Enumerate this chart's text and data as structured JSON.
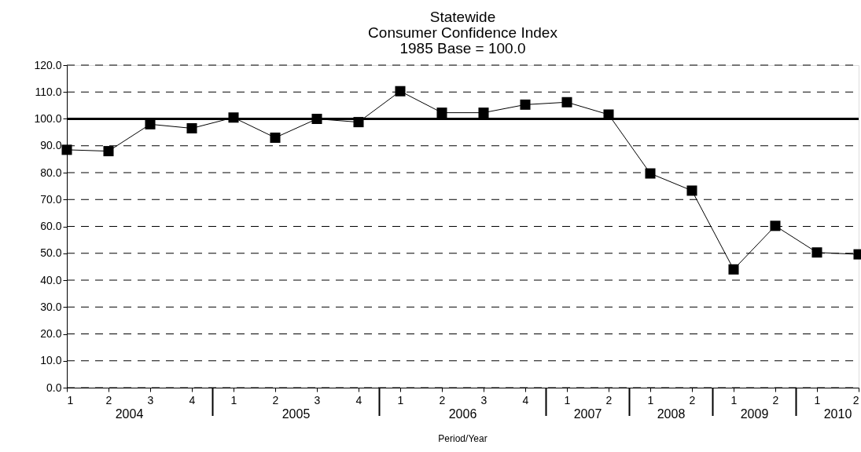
{
  "chart_data": {
    "type": "line",
    "title": [
      "Statewide",
      "Consumer Confidence Index",
      "1985 Base = 100.0"
    ],
    "xlabel": "Period/Year",
    "categories": [
      "1",
      "2",
      "3",
      "4",
      "1",
      "2",
      "3",
      "4",
      "1",
      "2",
      "3",
      "4",
      "1",
      "2",
      "1",
      "2",
      "1",
      "2",
      "1",
      "2"
    ],
    "series": [
      {
        "color": "#000000",
        "values": [
          88.5,
          88.0,
          98.0,
          96.5,
          100.5,
          93.0,
          100.0,
          98.8,
          110.3,
          102.3,
          102.3,
          105.3,
          106.2,
          101.6,
          79.7,
          73.3,
          44.0,
          60.2,
          50.3,
          49.6
        ]
      }
    ],
    "annotations": [
      "2004",
      "2005",
      "2006",
      "2007",
      "2008",
      "2009",
      "2010"
    ],
    "ylim": [
      0,
      120
    ],
    "yticks": [
      {
        "value": 0,
        "label": "0.0"
      },
      {
        "value": 10,
        "label": "10.0"
      },
      {
        "value": 20,
        "label": "20.0"
      },
      {
        "value": 30,
        "label": "30.0"
      },
      {
        "value": 40,
        "label": "40.0"
      },
      {
        "value": 50,
        "label": "50.0"
      },
      {
        "value": 60,
        "label": "60.0"
      },
      {
        "value": 70,
        "label": "70.0"
      },
      {
        "value": 80,
        "label": "80.0"
      },
      {
        "value": 90,
        "label": "90.0"
      },
      {
        "value": 100,
        "label": "100.0"
      },
      {
        "value": 110,
        "label": "110.0"
      },
      {
        "value": 120,
        "label": "120.0"
      }
    ],
    "ref_lines": [
      {
        "axis": "y",
        "value": 100,
        "color": "#000000"
      }
    ],
    "grid": "y",
    "marker": "square",
    "line_style": "solid"
  }
}
